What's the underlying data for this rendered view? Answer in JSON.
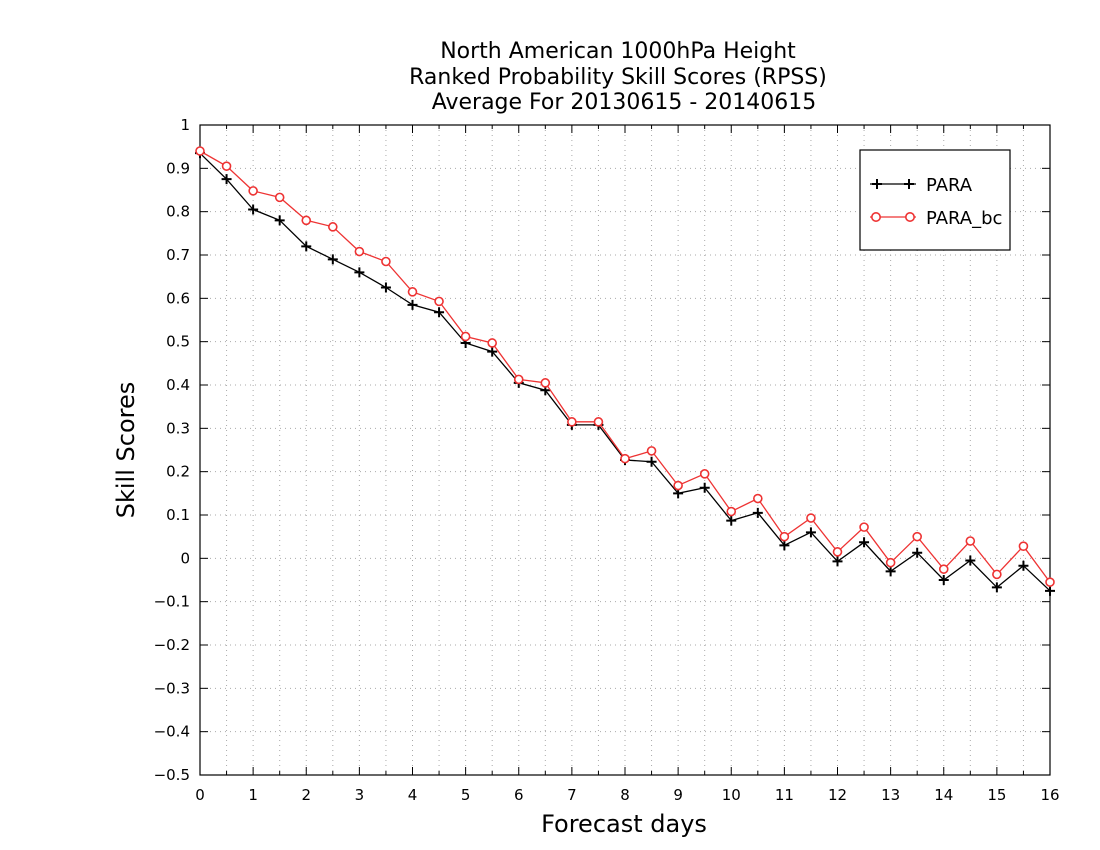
{
  "chart_data": {
    "type": "line",
    "title": [
      "North American 1000hPa Height",
      "Ranked Probability Skill Scores (RPSS)",
      "Average For 20130615 - 20140615"
    ],
    "xlabel": "Forecast days",
    "ylabel": "Skill Scores",
    "xlim": [
      0,
      16
    ],
    "ylim": [
      -0.5,
      1
    ],
    "xticks": [
      0,
      1,
      2,
      3,
      4,
      5,
      6,
      7,
      8,
      9,
      10,
      11,
      12,
      13,
      14,
      15,
      16
    ],
    "yticks": [
      -0.5,
      -0.4,
      -0.3,
      -0.2,
      -0.1,
      0,
      0.1,
      0.2,
      0.3,
      0.4,
      0.5,
      0.6,
      0.7,
      0.8,
      0.9,
      1
    ],
    "ytick_labels": [
      "−0.5",
      "−0.4",
      "−0.3",
      "−0.2",
      "−0.1",
      "0",
      "0.1",
      "0.2",
      "0.3",
      "0.4",
      "0.5",
      "0.6",
      "0.7",
      "0.8",
      "0.9",
      "1"
    ],
    "grid": true,
    "legend_position": "top-right",
    "x": [
      0,
      0.5,
      1,
      1.5,
      2,
      2.5,
      3,
      3.5,
      4,
      4.5,
      5,
      5.5,
      6,
      6.5,
      7,
      7.5,
      8,
      8.5,
      9,
      9.5,
      10,
      10.5,
      11,
      11.5,
      12,
      12.5,
      13,
      13.5,
      14,
      14.5,
      15,
      15.5,
      16
    ],
    "series": [
      {
        "name": "PARA",
        "color": "#000000",
        "marker": "plus",
        "values": [
          0.935,
          0.875,
          0.805,
          0.78,
          0.72,
          0.69,
          0.66,
          0.625,
          0.585,
          0.568,
          0.497,
          0.477,
          0.405,
          0.388,
          0.308,
          0.308,
          0.227,
          0.223,
          0.15,
          0.163,
          0.087,
          0.105,
          0.03,
          0.06,
          -0.007,
          0.037,
          -0.03,
          0.013,
          -0.05,
          -0.005,
          -0.067,
          -0.017,
          -0.075
        ]
      },
      {
        "name": "PARA_bc",
        "color": "#ee3333",
        "marker": "circle",
        "values": [
          0.94,
          0.905,
          0.848,
          0.833,
          0.78,
          0.765,
          0.708,
          0.685,
          0.615,
          0.593,
          0.512,
          0.497,
          0.413,
          0.405,
          0.315,
          0.315,
          0.23,
          0.248,
          0.168,
          0.195,
          0.108,
          0.138,
          0.05,
          0.093,
          0.015,
          0.072,
          -0.01,
          0.05,
          -0.025,
          0.04,
          -0.037,
          0.028,
          -0.055
        ]
      }
    ]
  }
}
